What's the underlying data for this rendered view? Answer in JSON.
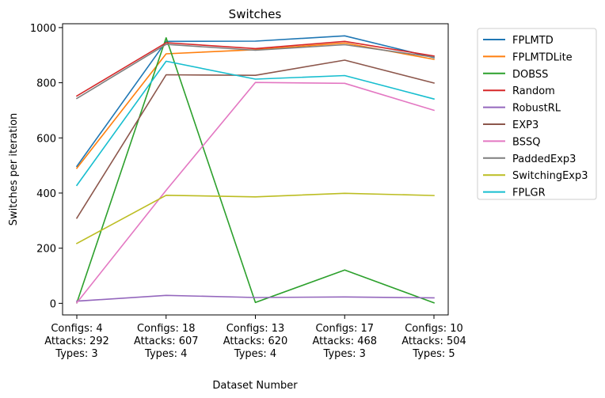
{
  "chart_data": {
    "type": "line",
    "title": "Switches",
    "xlabel": "Dataset Number",
    "ylabel": "Switches per iteration",
    "categories": [
      [
        "Configs: 4",
        "Attacks: 292",
        "Types: 3"
      ],
      [
        "Configs: 18",
        "Attacks: 607",
        "Types: 4"
      ],
      [
        "Configs: 13",
        "Attacks: 620",
        "Types: 4"
      ],
      [
        "Configs: 17",
        "Attacks: 468",
        "Types: 3"
      ],
      [
        "Configs: 10",
        "Attacks: 504",
        "Types: 5"
      ]
    ],
    "yticks": [
      0,
      200,
      400,
      600,
      800,
      1000
    ],
    "ylim": [
      -42,
      1014
    ],
    "grid": false,
    "legend": "outside-right",
    "series": [
      {
        "name": "FPLMTD",
        "color": "#1f77b4",
        "values": [
          497,
          950,
          951,
          970,
          891
        ]
      },
      {
        "name": "FPLMTDLite",
        "color": "#ff7f0e",
        "values": [
          490,
          905,
          920,
          944,
          885
        ]
      },
      {
        "name": "DOBSS",
        "color": "#2ca02c",
        "values": [
          2,
          963,
          3,
          121,
          2
        ]
      },
      {
        "name": "Random",
        "color": "#d62728",
        "values": [
          752,
          945,
          924,
          950,
          897
        ]
      },
      {
        "name": "RobustRL",
        "color": "#9467bd",
        "values": [
          8,
          29,
          21,
          23,
          20
        ]
      },
      {
        "name": "EXP3",
        "color": "#8c564b",
        "values": [
          309,
          829,
          827,
          882,
          799
        ]
      },
      {
        "name": "BSSQ",
        "color": "#e377c2",
        "values": [
          2,
          410,
          801,
          798,
          700
        ]
      },
      {
        "name": "PaddedExp3",
        "color": "#7f7f7f",
        "values": [
          743,
          939,
          918,
          938,
          893
        ]
      },
      {
        "name": "SwitchingExp3",
        "color": "#bcbd22",
        "values": [
          217,
          392,
          386,
          399,
          391
        ]
      },
      {
        "name": "FPLGR",
        "color": "#17becf",
        "values": [
          428,
          878,
          813,
          826,
          741
        ]
      }
    ]
  }
}
